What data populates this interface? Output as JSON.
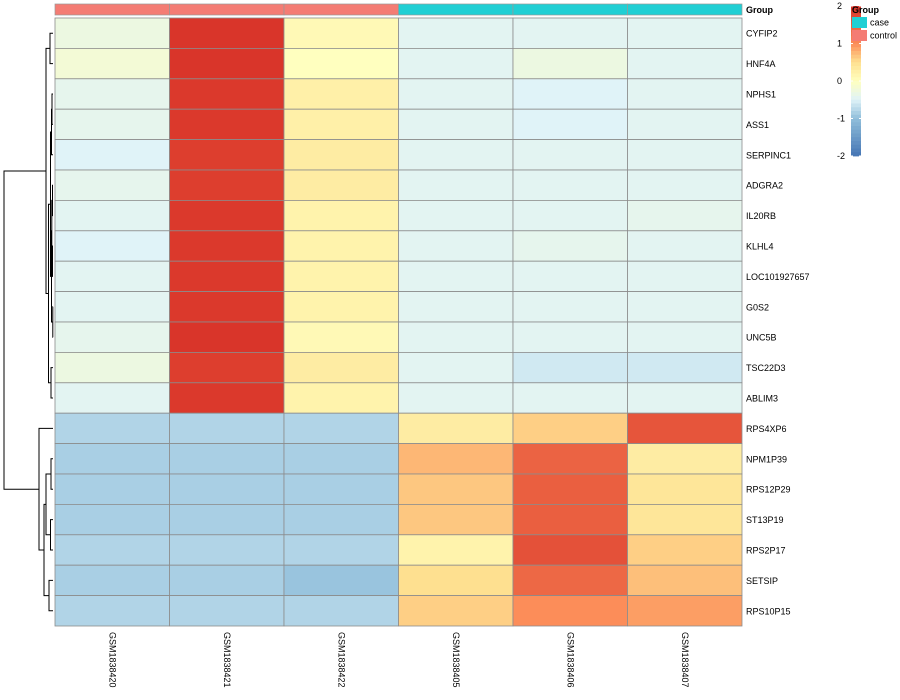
{
  "chart_data": {
    "type": "heatmap",
    "columns": [
      "GSM1838420",
      "GSM1838421",
      "GSM1838422",
      "GSM1838405",
      "GSM1838406",
      "GSM1838407"
    ],
    "column_groups": [
      "control",
      "control",
      "control",
      "case",
      "case",
      "case"
    ],
    "rows": [
      "CYFIP2",
      "HNF4A",
      "NPHS1",
      "ASS1",
      "SERPINC1",
      "ADGRA2",
      "IL20RB",
      "KLHL4",
      "LOC101927657",
      "G0S2",
      "UNC5B",
      "TSC22D3",
      "ABLIM3",
      "RPS4XP6",
      "NPM1P39",
      "RPS12P29",
      "ST13P19",
      "RPS2P17",
      "SETSIP",
      "RPS10P15"
    ],
    "values": [
      [
        -0.3,
        1.95,
        0.1,
        -0.45,
        -0.45,
        -0.45
      ],
      [
        -0.2,
        1.95,
        0.0,
        -0.45,
        -0.3,
        -0.45
      ],
      [
        -0.4,
        1.9,
        0.25,
        -0.45,
        -0.5,
        -0.45
      ],
      [
        -0.4,
        1.9,
        0.25,
        -0.45,
        -0.5,
        -0.45
      ],
      [
        -0.5,
        1.85,
        0.3,
        -0.45,
        -0.45,
        -0.45
      ],
      [
        -0.4,
        1.85,
        0.3,
        -0.45,
        -0.45,
        -0.45
      ],
      [
        -0.45,
        1.9,
        0.2,
        -0.45,
        -0.45,
        -0.4
      ],
      [
        -0.5,
        1.9,
        0.2,
        -0.45,
        -0.4,
        -0.45
      ],
      [
        -0.45,
        1.9,
        0.2,
        -0.45,
        -0.45,
        -0.45
      ],
      [
        -0.45,
        1.9,
        0.2,
        -0.45,
        -0.45,
        -0.45
      ],
      [
        -0.4,
        1.95,
        0.1,
        -0.45,
        -0.45,
        -0.45
      ],
      [
        -0.3,
        1.85,
        0.3,
        -0.45,
        -0.6,
        -0.6
      ],
      [
        -0.45,
        1.9,
        0.2,
        -0.45,
        -0.45,
        -0.45
      ],
      [
        -0.8,
        -0.8,
        -0.8,
        0.3,
        0.6,
        1.6
      ],
      [
        -0.85,
        -0.85,
        -0.85,
        0.75,
        1.45,
        0.3
      ],
      [
        -0.85,
        -0.85,
        -0.85,
        0.65,
        1.5,
        0.4
      ],
      [
        -0.85,
        -0.85,
        -0.85,
        0.65,
        1.5,
        0.4
      ],
      [
        -0.8,
        -0.8,
        -0.8,
        0.2,
        1.65,
        0.6
      ],
      [
        -0.85,
        -0.85,
        -0.95,
        0.5,
        1.4,
        0.7
      ],
      [
        -0.8,
        -0.8,
        -0.8,
        0.6,
        1.0,
        0.9
      ]
    ],
    "color_scale": {
      "min": -2,
      "max": 2,
      "ticks": [
        2,
        1,
        0,
        -1,
        -2
      ],
      "stops": [
        {
          "v": -2,
          "color": "#4575b4"
        },
        {
          "v": -1,
          "color": "#91bfdb"
        },
        {
          "v": -0.5,
          "color": "#e0f3f8"
        },
        {
          "v": 0,
          "color": "#ffffbf"
        },
        {
          "v": 0.5,
          "color": "#fee090"
        },
        {
          "v": 1,
          "color": "#fc8d59"
        },
        {
          "v": 2,
          "color": "#d73027"
        }
      ]
    },
    "annotation": {
      "title": "Group",
      "legend": [
        {
          "label": "case",
          "color": "#21cfd4"
        },
        {
          "label": "control",
          "color": "#f47c74"
        }
      ]
    },
    "grid": true,
    "row_dendrogram": true,
    "legend_position": "right"
  }
}
